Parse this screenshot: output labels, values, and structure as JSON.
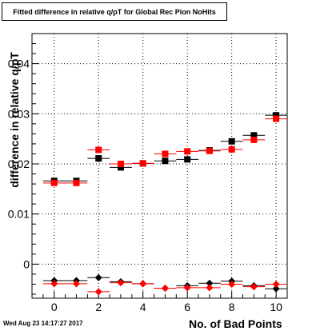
{
  "title": "Fitted difference in relative q/pT for Global Rec Pion NoHits",
  "footer": "Wed Aug 23 14:17:27 2017",
  "colors": {
    "series_a": "#000000",
    "series_b": "#ff0000",
    "grid": "#000000",
    "frame": "#000000"
  },
  "chart_data": {
    "type": "scatter",
    "title": "Fitted difference in relative q/pT for Global Rec Pion NoHits",
    "xlabel": "No. of Bad Points",
    "ylabel": "difference in relative q/pT",
    "xlim": [
      -1,
      10.5
    ],
    "ylim": [
      -0.0068,
      0.046
    ],
    "x_ticks": [
      "0",
      "2",
      "4",
      "6",
      "8",
      "10"
    ],
    "y_ticks": [
      "0",
      "0.01",
      "0.02",
      "0.03",
      "0.04"
    ],
    "grid": true,
    "marker_groups": [
      {
        "marker": "square",
        "color": "black",
        "x": [
          0,
          1,
          2,
          3,
          4,
          5,
          6,
          7,
          8,
          9,
          10
        ],
        "y": [
          0.0166,
          0.0166,
          0.0211,
          0.0193,
          0.0201,
          0.0206,
          0.0209,
          0.0227,
          0.0245,
          0.0257,
          0.0297
        ]
      },
      {
        "marker": "square",
        "color": "red",
        "x": [
          0,
          1,
          2,
          3,
          4,
          5,
          6,
          7,
          8,
          9,
          10
        ],
        "y": [
          0.0162,
          0.0162,
          0.0228,
          0.02,
          0.0201,
          0.022,
          0.0225,
          0.0226,
          0.0229,
          0.0248,
          0.029
        ]
      },
      {
        "marker": "diamond",
        "color": "black",
        "x": [
          0,
          1,
          2,
          3,
          4,
          5,
          6,
          7,
          8,
          9,
          10
        ],
        "y": [
          -0.0033,
          -0.0033,
          -0.0027,
          -0.0035,
          -0.0039,
          -0.0048,
          -0.0043,
          -0.0038,
          -0.0034,
          -0.0043,
          -0.0049
        ]
      },
      {
        "marker": "diamond",
        "color": "red",
        "x": [
          0,
          1,
          2,
          3,
          4,
          5,
          6,
          7,
          8,
          9,
          10
        ],
        "y": [
          -0.0039,
          -0.0039,
          -0.0055,
          -0.0037,
          -0.0039,
          -0.0048,
          -0.0047,
          -0.0047,
          -0.004,
          -0.0045,
          -0.004
        ]
      }
    ]
  }
}
